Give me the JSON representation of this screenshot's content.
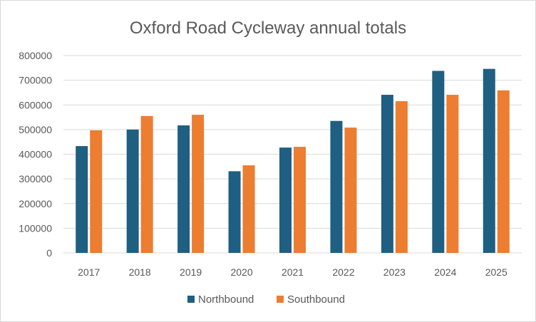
{
  "chart_data": {
    "type": "bar",
    "title": "Oxford Road Cycleway annual totals",
    "xlabel": "",
    "ylabel": "",
    "categories": [
      "2017",
      "2018",
      "2019",
      "2020",
      "2021",
      "2022",
      "2023",
      "2024",
      "2025"
    ],
    "series": [
      {
        "name": "Northbound",
        "color": "#1f5f82",
        "values": [
          433000,
          500000,
          517000,
          331000,
          427000,
          535000,
          641000,
          738000,
          746000
        ]
      },
      {
        "name": "Southbound",
        "color": "#ed7d31",
        "values": [
          497000,
          555000,
          560000,
          355000,
          430000,
          508000,
          615000,
          641000,
          659000
        ]
      }
    ],
    "ylim": [
      0,
      800000
    ],
    "yticks": [
      "0",
      "100000",
      "200000",
      "300000",
      "400000",
      "500000",
      "600000",
      "700000",
      "800000"
    ],
    "grid": true,
    "legend_position": "bottom-center",
    "colors": {
      "gridline": "#d9d9d9",
      "text": "#595959",
      "axis": "#d9d9d9"
    }
  }
}
